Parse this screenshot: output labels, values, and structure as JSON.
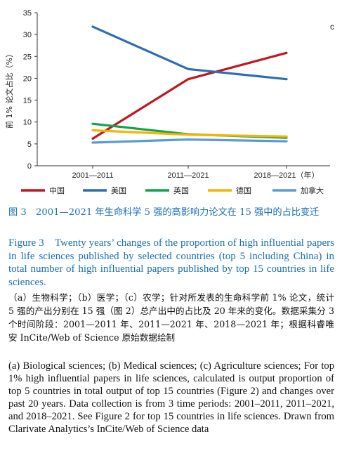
{
  "chart_data": {
    "type": "line",
    "panel_label": "c",
    "ylabel": "前 1% 论文占比（%）",
    "xlabel": "",
    "ylim": [
      0,
      35
    ],
    "yticks": [
      0,
      5,
      10,
      15,
      20,
      25,
      30,
      35
    ],
    "categories": [
      "2001—2011",
      "2011—2021",
      "2018—2021（年）"
    ],
    "series": [
      {
        "name": "中国",
        "color": "#c0161f",
        "values": [
          6.2,
          19.8,
          25.8
        ]
      },
      {
        "name": "美国",
        "color": "#2e6db4",
        "values": [
          31.8,
          22.1,
          19.8
        ]
      },
      {
        "name": "英国",
        "color": "#10a34a",
        "values": [
          9.6,
          7.2,
          6.4
        ]
      },
      {
        "name": "德国",
        "color": "#f5b400",
        "values": [
          8.1,
          7.1,
          6.7
        ]
      },
      {
        "name": "加拿大",
        "color": "#5b9bd5",
        "values": [
          5.3,
          6.0,
          5.6
        ]
      }
    ],
    "grid": false,
    "legend_position": "bottom"
  },
  "caption": {
    "cn": "图 3　2001—2021 年生命科学 5 强的高影响力论文在 15 强中的占比变迁",
    "en": "Figure 3　Twenty years’ changes of the proportion of high influential papers in life sciences published by selected countries (top 5 including China) in total number of high influential papers published by top 15 countries in life sciences."
  },
  "note": {
    "cn": "（a）生物科学；（b）医学；（c）农学；针对所发表的生命科学前 1% 论文，统计 5 强的产出分别在 15 强（图 2）总产出中的占比及 20 年来的变化。数据采集分 3 个时间阶段：2001—2011 年、2011—2021 年、2018—2021 年；根据科睿唯安 InCite/Web of Science 原始数据绘制",
    "en": "(a) Biological sciences; (b) Medical sciences; (c) Agriculture sciences; For top 1% high influential papers in life sciences, calculated is output proportion of top 5 countries in total output of top 15 countries (Figure 2) and changes over past 20 years. Data collection is from 3 time periods: 2001–2011, 2011–2021, and 2018–2021. See Figure 2 for top 15 countries in life sciences. Drawn from Clarivate Analytics’s InCite/Web of Science data"
  }
}
